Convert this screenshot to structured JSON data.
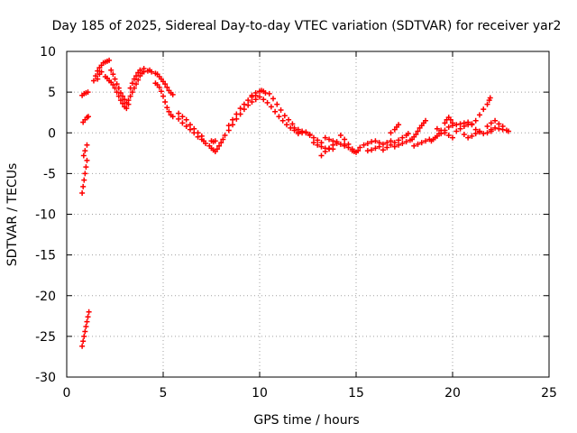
{
  "chart_data": {
    "type": "scatter",
    "title": "Day 185 of 2025, Sidereal Day-to-day VTEC variation (SDTVAR) for receiver yar2",
    "xlabel": "GPS time / hours",
    "ylabel": "SDTVAR / TECUs",
    "xlim": [
      0,
      25
    ],
    "ylim": [
      -30,
      10
    ],
    "x_ticks": [
      "0",
      "5",
      "10",
      "15",
      "20",
      "25"
    ],
    "y_ticks": [
      "10",
      "5",
      "0",
      "-5",
      "-10",
      "-15",
      "-20",
      "-25",
      "-30"
    ],
    "grid": true,
    "legend": "none",
    "series": [
      {
        "name": "SDTVAR",
        "color": "#ff0000",
        "marker": "plus",
        "points": [
          [
            0.8,
            -26.2
          ],
          [
            0.85,
            -25.6
          ],
          [
            0.9,
            -25.0
          ],
          [
            0.95,
            -24.4
          ],
          [
            1.0,
            -23.8
          ],
          [
            1.05,
            -23.2
          ],
          [
            1.1,
            -22.6
          ],
          [
            1.15,
            -22.0
          ],
          [
            0.8,
            -7.4
          ],
          [
            0.85,
            -6.6
          ],
          [
            0.9,
            -5.8
          ],
          [
            0.95,
            -5.0
          ],
          [
            1.0,
            -4.2
          ],
          [
            1.05,
            -3.4
          ],
          [
            0.88,
            -2.8
          ],
          [
            0.95,
            -2.2
          ],
          [
            1.05,
            -1.5
          ],
          [
            0.85,
            1.3
          ],
          [
            0.95,
            1.6
          ],
          [
            1.05,
            1.9
          ],
          [
            1.12,
            2.0
          ],
          [
            0.8,
            4.6
          ],
          [
            0.9,
            4.8
          ],
          [
            1.0,
            4.9
          ],
          [
            1.1,
            5.0
          ],
          [
            1.4,
            6.4
          ],
          [
            1.5,
            7.0
          ],
          [
            1.6,
            7.6
          ],
          [
            1.7,
            8.0
          ],
          [
            1.8,
            8.3
          ],
          [
            1.9,
            8.6
          ],
          [
            2.0,
            8.7
          ],
          [
            2.1,
            8.8
          ],
          [
            2.2,
            8.9
          ],
          [
            1.6,
            6.6
          ],
          [
            1.7,
            7.2
          ],
          [
            1.8,
            7.5
          ],
          [
            2.0,
            6.9
          ],
          [
            2.1,
            6.7
          ],
          [
            2.2,
            6.4
          ],
          [
            2.3,
            6.2
          ],
          [
            2.4,
            5.9
          ],
          [
            2.5,
            5.5
          ],
          [
            2.6,
            5.0
          ],
          [
            2.7,
            4.5
          ],
          [
            2.8,
            4.0
          ],
          [
            2.9,
            3.6
          ],
          [
            3.0,
            3.2
          ],
          [
            3.1,
            3.0
          ],
          [
            2.3,
            7.7
          ],
          [
            2.4,
            7.2
          ],
          [
            2.5,
            6.6
          ],
          [
            2.6,
            6.0
          ],
          [
            2.7,
            5.5
          ],
          [
            2.8,
            4.9
          ],
          [
            2.9,
            4.5
          ],
          [
            3.0,
            4.1
          ],
          [
            3.1,
            3.7
          ],
          [
            3.2,
            3.5
          ],
          [
            3.2,
            4.0
          ],
          [
            3.3,
            4.5
          ],
          [
            3.4,
            5.0
          ],
          [
            3.5,
            5.5
          ],
          [
            3.6,
            6.0
          ],
          [
            3.7,
            6.5
          ],
          [
            3.8,
            7.0
          ],
          [
            3.9,
            7.3
          ],
          [
            4.0,
            7.5
          ],
          [
            4.2,
            7.6
          ],
          [
            4.4,
            7.5
          ],
          [
            4.6,
            7.3
          ],
          [
            3.3,
            5.5
          ],
          [
            3.4,
            6.1
          ],
          [
            3.5,
            6.6
          ],
          [
            3.6,
            7.0
          ],
          [
            3.7,
            7.4
          ],
          [
            3.8,
            7.7
          ],
          [
            4.0,
            7.9
          ],
          [
            4.3,
            7.7
          ],
          [
            4.7,
            7.2
          ],
          [
            4.8,
            6.9
          ],
          [
            4.9,
            6.6
          ],
          [
            5.0,
            6.3
          ],
          [
            5.1,
            6.0
          ],
          [
            5.2,
            5.6
          ],
          [
            5.3,
            5.2
          ],
          [
            5.4,
            4.9
          ],
          [
            5.5,
            4.7
          ],
          [
            4.6,
            6.1
          ],
          [
            4.7,
            5.9
          ],
          [
            4.8,
            5.6
          ],
          [
            4.9,
            5.1
          ],
          [
            5.0,
            4.5
          ],
          [
            5.1,
            3.8
          ],
          [
            5.2,
            3.1
          ],
          [
            5.3,
            2.6
          ],
          [
            5.4,
            2.2
          ],
          [
            5.5,
            2.0
          ],
          [
            5.8,
            1.7
          ],
          [
            6.0,
            1.2
          ],
          [
            6.2,
            0.8
          ],
          [
            6.4,
            0.4
          ],
          [
            6.6,
            0.0
          ],
          [
            6.8,
            -0.5
          ],
          [
            7.0,
            -0.8
          ],
          [
            5.8,
            2.4
          ],
          [
            6.0,
            2.0
          ],
          [
            6.2,
            1.6
          ],
          [
            6.4,
            1.0
          ],
          [
            6.6,
            0.5
          ],
          [
            6.8,
            0.0
          ],
          [
            7.0,
            -0.4
          ],
          [
            7.1,
            -1.0
          ],
          [
            7.2,
            -1.3
          ],
          [
            7.4,
            -1.6
          ],
          [
            7.5,
            -1.9
          ],
          [
            7.6,
            -2.1
          ],
          [
            7.7,
            -2.3
          ],
          [
            7.8,
            -2.0
          ],
          [
            7.9,
            -1.6
          ],
          [
            8.0,
            -1.2
          ],
          [
            8.1,
            -0.8
          ],
          [
            7.5,
            -1.0
          ],
          [
            7.6,
            -1.1
          ],
          [
            7.7,
            -1.0
          ],
          [
            8.2,
            -0.3
          ],
          [
            8.4,
            0.3
          ],
          [
            8.6,
            1.0
          ],
          [
            8.8,
            1.7
          ],
          [
            9.0,
            2.3
          ],
          [
            9.2,
            2.9
          ],
          [
            9.4,
            3.4
          ],
          [
            9.6,
            3.8
          ],
          [
            9.8,
            4.1
          ],
          [
            10.0,
            4.4
          ],
          [
            8.4,
            0.9
          ],
          [
            8.6,
            1.6
          ],
          [
            8.8,
            2.3
          ],
          [
            9.0,
            3.0
          ],
          [
            9.2,
            3.5
          ],
          [
            9.4,
            4.0
          ],
          [
            9.6,
            4.4
          ],
          [
            9.8,
            4.6
          ],
          [
            9.6,
            4.6
          ],
          [
            9.8,
            4.9
          ],
          [
            10.0,
            5.1
          ],
          [
            10.1,
            5.2
          ],
          [
            10.2,
            5.1
          ],
          [
            10.3,
            4.9
          ],
          [
            10.2,
            4.1
          ],
          [
            10.4,
            3.7
          ],
          [
            10.6,
            3.2
          ],
          [
            10.8,
            2.6
          ],
          [
            11.0,
            2.0
          ],
          [
            11.2,
            1.5
          ],
          [
            11.4,
            1.0
          ],
          [
            11.6,
            0.6
          ],
          [
            11.8,
            0.3
          ],
          [
            12.0,
            0.1
          ],
          [
            10.5,
            4.8
          ],
          [
            10.7,
            4.2
          ],
          [
            10.9,
            3.5
          ],
          [
            11.1,
            2.8
          ],
          [
            11.3,
            2.1
          ],
          [
            11.5,
            1.6
          ],
          [
            11.7,
            1.1
          ],
          [
            11.8,
            0.6
          ],
          [
            12.0,
            0.4
          ],
          [
            12.2,
            0.2
          ],
          [
            12.4,
            0.0
          ],
          [
            12.6,
            -0.3
          ],
          [
            12.8,
            -0.6
          ],
          [
            13.0,
            -0.9
          ],
          [
            13.2,
            -1.2
          ],
          [
            12.0,
            -0.1
          ],
          [
            12.2,
            0.0
          ],
          [
            12.4,
            0.1
          ],
          [
            12.6,
            -0.2
          ],
          [
            12.8,
            -1.2
          ],
          [
            13.0,
            -1.5
          ],
          [
            13.2,
            -1.7
          ],
          [
            13.4,
            -1.9
          ],
          [
            13.6,
            -2.0
          ],
          [
            13.8,
            -2.0
          ],
          [
            13.2,
            -2.8
          ],
          [
            13.4,
            -2.3
          ],
          [
            13.6,
            -1.9
          ],
          [
            13.8,
            -1.5
          ],
          [
            14.0,
            -1.3
          ],
          [
            14.2,
            -1.4
          ],
          [
            14.4,
            -1.6
          ],
          [
            13.4,
            -0.6
          ],
          [
            13.6,
            -0.8
          ],
          [
            13.8,
            -1.0
          ],
          [
            14.0,
            -1.1
          ],
          [
            14.2,
            -0.3
          ],
          [
            14.4,
            -0.8
          ],
          [
            14.6,
            -1.4
          ],
          [
            14.8,
            -2.0
          ],
          [
            15.0,
            -2.4
          ],
          [
            15.1,
            -2.2
          ],
          [
            14.4,
            -1.4
          ],
          [
            14.6,
            -1.8
          ],
          [
            14.8,
            -2.2
          ],
          [
            14.9,
            -2.3
          ],
          [
            15.2,
            -1.8
          ],
          [
            15.4,
            -1.5
          ],
          [
            15.6,
            -1.3
          ],
          [
            15.8,
            -1.1
          ],
          [
            16.0,
            -1.0
          ],
          [
            16.2,
            -1.2
          ],
          [
            15.6,
            -2.2
          ],
          [
            15.8,
            -2.1
          ],
          [
            16.0,
            -1.9
          ],
          [
            16.2,
            -1.7
          ],
          [
            16.4,
            -1.4
          ],
          [
            16.6,
            -1.2
          ],
          [
            16.8,
            -1.0
          ],
          [
            16.4,
            -2.1
          ],
          [
            16.6,
            -1.8
          ],
          [
            16.8,
            -1.5
          ],
          [
            17.0,
            -1.2
          ],
          [
            17.2,
            -0.9
          ],
          [
            17.4,
            -0.6
          ],
          [
            17.6,
            -0.3
          ],
          [
            17.7,
            -0.1
          ],
          [
            17.0,
            -1.7
          ],
          [
            17.2,
            -1.5
          ],
          [
            17.4,
            -1.3
          ],
          [
            17.6,
            -1.1
          ],
          [
            17.8,
            -0.9
          ],
          [
            16.8,
            0.0
          ],
          [
            17.0,
            0.4
          ],
          [
            17.1,
            0.7
          ],
          [
            17.2,
            1.0
          ],
          [
            17.9,
            -0.8
          ],
          [
            18.0,
            -0.5
          ],
          [
            18.1,
            -0.2
          ],
          [
            18.2,
            0.2
          ],
          [
            18.3,
            0.6
          ],
          [
            18.4,
            0.9
          ],
          [
            18.5,
            1.2
          ],
          [
            18.6,
            1.5
          ],
          [
            18.0,
            -1.6
          ],
          [
            18.2,
            -1.4
          ],
          [
            18.4,
            -1.2
          ],
          [
            18.6,
            -1.0
          ],
          [
            18.8,
            -0.8
          ],
          [
            18.9,
            -1.0
          ],
          [
            19.0,
            -0.8
          ],
          [
            19.1,
            -0.6
          ],
          [
            19.2,
            -0.4
          ],
          [
            19.3,
            -0.1
          ],
          [
            19.2,
            0.5
          ],
          [
            19.4,
            0.3
          ],
          [
            19.6,
            0.0
          ],
          [
            19.8,
            -0.3
          ],
          [
            20.0,
            -0.6
          ],
          [
            19.6,
            1.2
          ],
          [
            19.7,
            1.6
          ],
          [
            19.8,
            1.9
          ],
          [
            19.9,
            1.6
          ],
          [
            20.0,
            1.2
          ],
          [
            19.4,
            -0.1
          ],
          [
            19.6,
            0.3
          ],
          [
            19.8,
            0.7
          ],
          [
            20.0,
            0.9
          ],
          [
            20.2,
            1.0
          ],
          [
            20.4,
            1.1
          ],
          [
            20.6,
            1.2
          ],
          [
            20.8,
            1.3
          ],
          [
            20.2,
            0.2
          ],
          [
            20.4,
            0.5
          ],
          [
            20.6,
            0.8
          ],
          [
            20.8,
            1.0
          ],
          [
            21.0,
            1.1
          ],
          [
            20.6,
            -0.2
          ],
          [
            20.8,
            -0.6
          ],
          [
            21.0,
            -0.4
          ],
          [
            21.2,
            -0.1
          ],
          [
            21.4,
            0.2
          ],
          [
            21.0,
            1.0
          ],
          [
            21.2,
            1.5
          ],
          [
            21.4,
            2.2
          ],
          [
            21.6,
            2.9
          ],
          [
            21.8,
            3.5
          ],
          [
            21.9,
            4.0
          ],
          [
            21.95,
            4.3
          ],
          [
            21.2,
            0.4
          ],
          [
            21.4,
            0.1
          ],
          [
            21.6,
            -0.1
          ],
          [
            21.8,
            0.0
          ],
          [
            22.0,
            0.2
          ],
          [
            21.8,
            0.8
          ],
          [
            22.0,
            1.2
          ],
          [
            22.2,
            1.5
          ],
          [
            22.4,
            1.1
          ],
          [
            22.6,
            0.8
          ],
          [
            22.0,
            0.4
          ],
          [
            22.2,
            0.6
          ],
          [
            22.4,
            0.5
          ],
          [
            22.6,
            0.4
          ],
          [
            22.8,
            0.3
          ],
          [
            22.9,
            0.2
          ]
        ]
      }
    ]
  }
}
